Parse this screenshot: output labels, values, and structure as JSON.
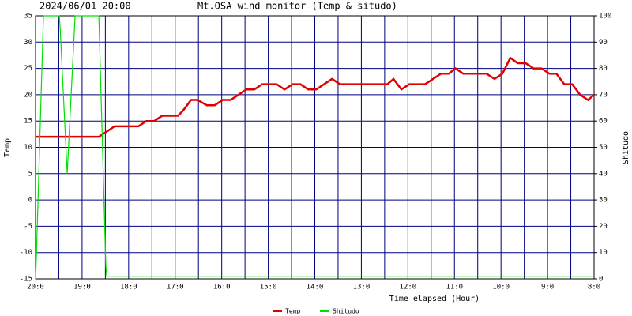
{
  "chart_data": {
    "type": "line",
    "title": "2024/06/01 20:00",
    "subtitle": "Mt.OSA wind monitor (Temp & situdo)",
    "xlabel": "Time elapsed (Hour)",
    "ylabel": "Temp",
    "y2label": "Shitudo",
    "xlim": [
      0,
      12
    ],
    "xticks": [
      {
        "value": 0,
        "label": "20:0"
      },
      {
        "value": 1,
        "label": "19:0"
      },
      {
        "value": 2,
        "label": "18:0"
      },
      {
        "value": 3,
        "label": "17:0"
      },
      {
        "value": 4,
        "label": "16:0"
      },
      {
        "value": 5,
        "label": "15:0"
      },
      {
        "value": 6,
        "label": "14:0"
      },
      {
        "value": 7,
        "label": "13:0"
      },
      {
        "value": 8,
        "label": "12:0"
      },
      {
        "value": 9,
        "label": "11:0"
      },
      {
        "value": 10,
        "label": "10:0"
      },
      {
        "value": 11,
        "label": "9:0"
      },
      {
        "value": 12,
        "label": "8:0"
      }
    ],
    "ylim": [
      -15,
      35
    ],
    "yticks": [
      -15,
      -10,
      -5,
      0,
      5,
      10,
      15,
      20,
      25,
      30,
      35
    ],
    "y2lim": [
      0,
      100
    ],
    "y2ticks": [
      0,
      10,
      20,
      30,
      40,
      50,
      60,
      70,
      80,
      90,
      100
    ],
    "grid": true,
    "grid_color": "#000080",
    "series": [
      {
        "name": "Temp",
        "color": "#e00000",
        "x": [
          0,
          1.36,
          1.53,
          1.7,
          2.21,
          2.38,
          2.55,
          2.72,
          3.06,
          3.17,
          3.34,
          3.48,
          3.68,
          3.85,
          4.02,
          4.19,
          4.36,
          4.53,
          4.7,
          4.87,
          5.18,
          5.35,
          5.52,
          5.69,
          5.86,
          6.03,
          6.2,
          6.37,
          6.54,
          7.56,
          7.69,
          7.86,
          8.03,
          8.37,
          8.54,
          8.71,
          8.88,
          9.02,
          9.19,
          9.69,
          9.86,
          10.03,
          10.2,
          10.36,
          10.53,
          10.7,
          10.87,
          11.04,
          11.19,
          11.36,
          11.53,
          11.7,
          11.87,
          12
        ],
        "values": [
          12,
          12,
          13,
          14,
          14,
          15,
          15,
          16,
          16,
          17,
          19,
          19,
          18,
          18,
          19,
          19,
          20,
          21,
          21,
          22,
          22,
          21,
          22,
          22,
          21,
          21,
          22,
          23,
          22,
          22,
          23,
          21,
          22,
          22,
          23,
          24,
          24,
          25,
          24,
          24,
          23,
          24,
          27,
          26,
          26,
          25,
          25,
          24,
          24,
          22,
          22,
          20,
          19,
          20
        ]
      },
      {
        "name": "Shitudo",
        "color": "#00e000",
        "axis": "y2",
        "x": [
          0,
          0.02,
          0.17,
          0.51,
          0.53,
          0.68,
          0.85,
          1.36,
          1.51,
          1.53,
          12
        ],
        "values": [
          0,
          10,
          100,
          100,
          95,
          40,
          100,
          100,
          5,
          1,
          1
        ]
      }
    ]
  }
}
